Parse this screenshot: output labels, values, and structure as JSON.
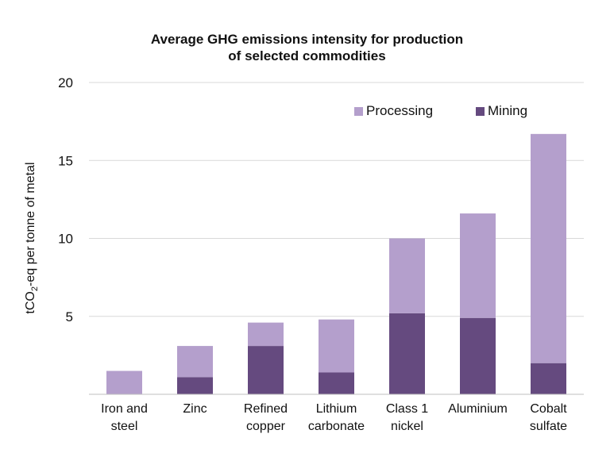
{
  "chart_data": {
    "type": "bar",
    "stacked": true,
    "title_lines": [
      "Average GHG emissions intensity for production",
      "of selected commodities"
    ],
    "ylabel_parts": [
      "tCO",
      "2",
      "-eq per tonne of metal"
    ],
    "categories": [
      [
        "Iron and",
        "steel"
      ],
      [
        "Zinc"
      ],
      [
        "Refined",
        "copper"
      ],
      [
        "Lithium",
        "carbonate"
      ],
      [
        "Class 1",
        "nickel"
      ],
      [
        "Aluminium"
      ],
      [
        "Cobalt",
        "sulfate"
      ]
    ],
    "series": [
      {
        "name": "Mining",
        "color": "#654a7f",
        "values": [
          0,
          1.1,
          3.1,
          1.4,
          5.2,
          4.9,
          2.0
        ]
      },
      {
        "name": "Processing",
        "color": "#b49fcc",
        "values": [
          1.5,
          2.0,
          1.5,
          3.4,
          4.8,
          6.7,
          14.7
        ]
      }
    ],
    "yticks": [
      5,
      10,
      15,
      20
    ],
    "ylim": [
      0,
      20
    ],
    "grid": true,
    "legend_position": "top-right"
  }
}
